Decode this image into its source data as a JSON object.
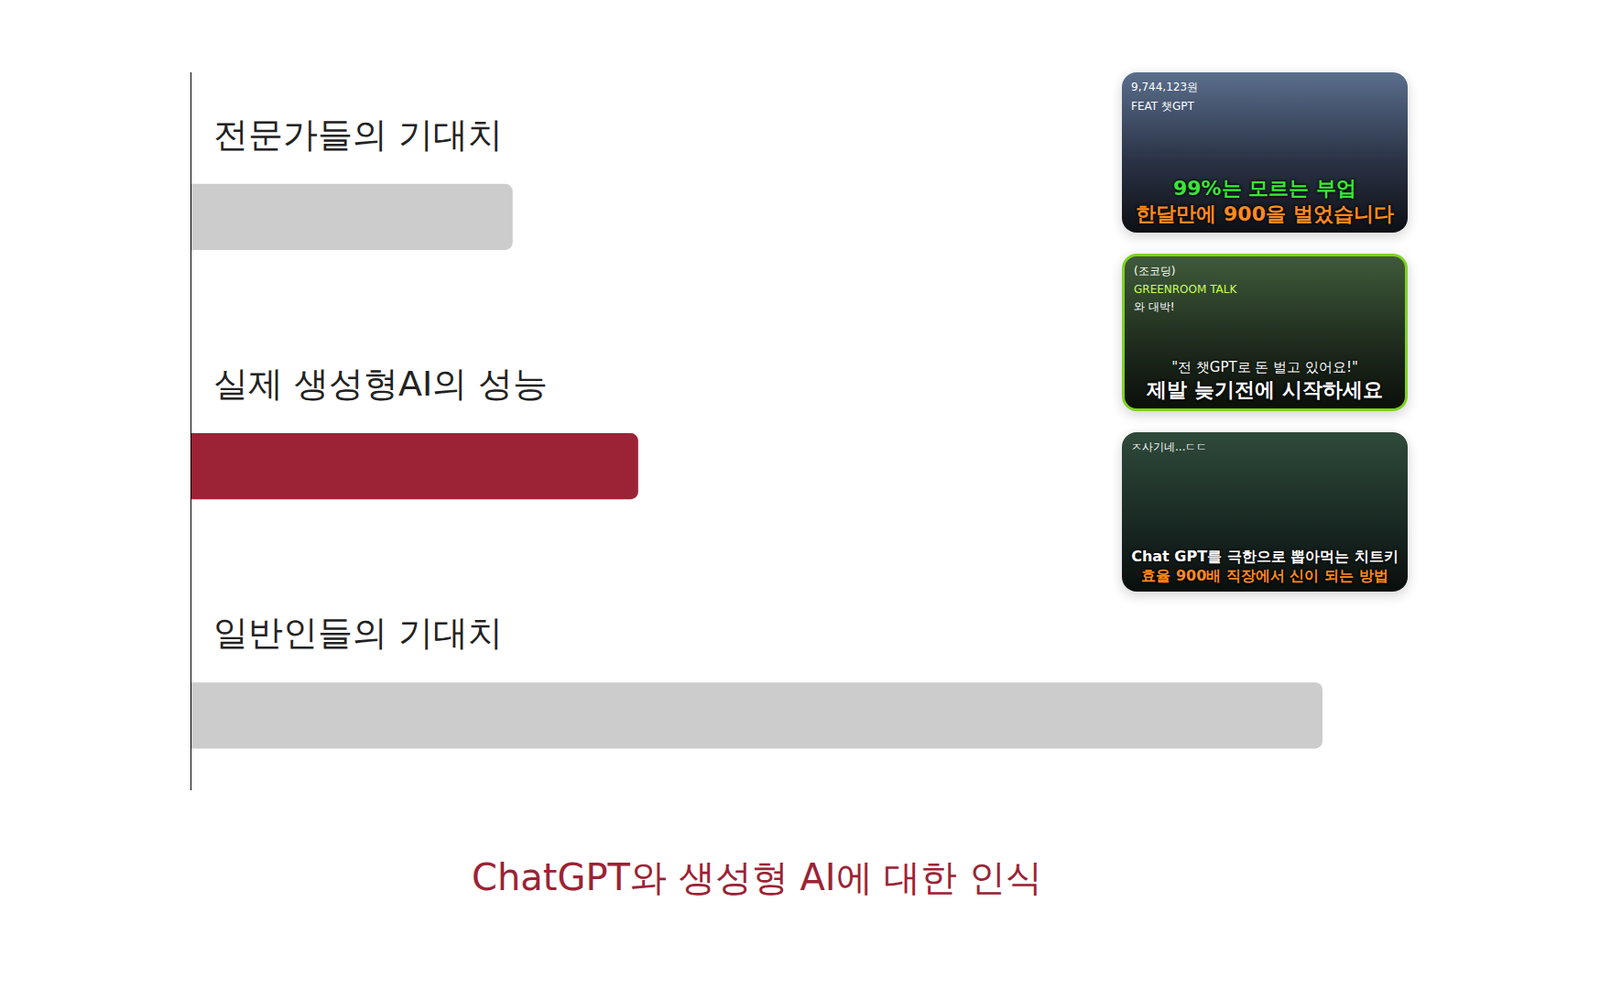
{
  "chart_data": {
    "type": "bar",
    "title": "ChatGPT와 생성형 AI에 대한 인식",
    "orientation": "horizontal",
    "categories": [
      "전문가들의 기대치",
      "실제 생성형AI의 성능",
      "일반인들의 기대치"
    ],
    "values": [
      28.4,
      39.5,
      100
    ],
    "colors": [
      "#cccccc",
      "#9b2335",
      "#cccccc"
    ],
    "xlim": [
      0,
      100
    ],
    "tick_labels": false,
    "grid": false,
    "annotations": [
      [
        "9,744,123원",
        "FEAT 챗GPT",
        "99%는 모르는 부업",
        "한달만에 900을 벌었습니다"
      ],
      [
        "(조코딩)",
        "GREENROOM TALK",
        "와 대박!",
        "\"전 챗GPT로 돈 벌고 있어요!\"",
        "제발 늦기전에 시작하세요"
      ],
      [
        "ㅈ사기네...ㄷㄷ",
        "Chat GPT를 극한으로 뽑아먹는 치트키",
        "효율 900배 직장에서 신이 되는 방법"
      ]
    ]
  }
}
